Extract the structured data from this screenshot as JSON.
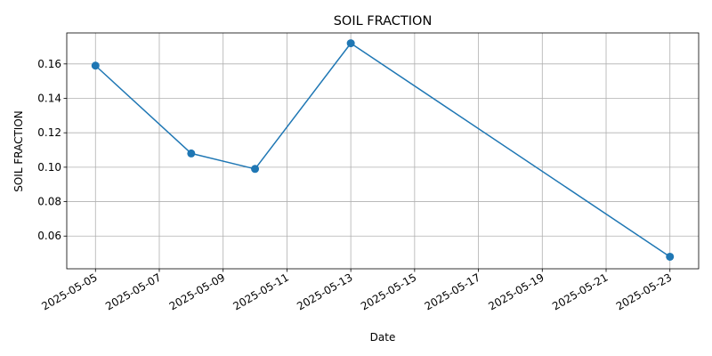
{
  "chart_data": {
    "type": "line",
    "title": "SOIL FRACTION",
    "xlabel": "Date",
    "ylabel": "SOIL FRACTION",
    "x_type": "date",
    "x_ticks": [
      "2025-05-05",
      "2025-05-07",
      "2025-05-09",
      "2025-05-11",
      "2025-05-13",
      "2025-05-15",
      "2025-05-17",
      "2025-05-19",
      "2025-05-21",
      "2025-05-23"
    ],
    "y_ticks": [
      0.06,
      0.08,
      0.1,
      0.12,
      0.14,
      0.16
    ],
    "y_tick_labels": [
      "0.06",
      "0.08",
      "0.10",
      "0.12",
      "0.14",
      "0.16"
    ],
    "ylim": [
      0.041,
      0.178
    ],
    "xlim": [
      "2025-05-04T02:24",
      "2025-05-23T21:36"
    ],
    "grid": true,
    "series": [
      {
        "color": "#1f77b4",
        "marker": "circle",
        "points": [
          {
            "x": "2025-05-05",
            "y": 0.159
          },
          {
            "x": "2025-05-08",
            "y": 0.108
          },
          {
            "x": "2025-05-10",
            "y": 0.099
          },
          {
            "x": "2025-05-13",
            "y": 0.172
          },
          {
            "x": "2025-05-23",
            "y": 0.048
          }
        ]
      }
    ]
  }
}
